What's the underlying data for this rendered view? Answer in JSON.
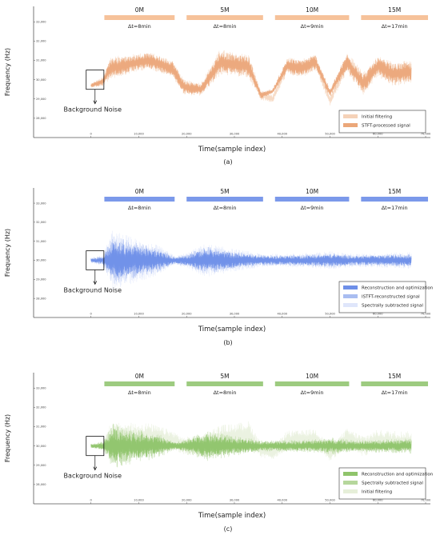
{
  "chart_data": [
    {
      "type": "line",
      "panel_label": "(a)",
      "xlabel": "Time(sample index)",
      "ylabel": "Frequency  (Hz)",
      "xlim": [
        -12000,
        71000
      ],
      "ylim": [
        27000,
        33800
      ],
      "xticks": [
        0,
        10000,
        20000,
        30000,
        40000,
        50000,
        60000,
        70000
      ],
      "xtick_labels": [
        "0",
        "10,000",
        "20,000",
        "30,000",
        "40,000",
        "50,000",
        "60,000",
        "70,000"
      ],
      "yticks": [
        28000,
        29000,
        30000,
        31000,
        32000,
        33000
      ],
      "ytick_labels": [
        "28,000",
        "29,000",
        "30,000",
        "31,000",
        "32,000",
        "33,000"
      ],
      "annotation": "Background Noise",
      "segments": [
        {
          "label": "0M",
          "dt": "Δt=8min",
          "x0": 2800,
          "x1": 17500
        },
        {
          "label": "5M",
          "dt": "Δt=8min",
          "x0": 20000,
          "x1": 36000
        },
        {
          "label": "10M",
          "dt": "Δt=9min",
          "x0": 38500,
          "x1": 54000
        },
        {
          "label": "15M",
          "dt": "Δt=17min",
          "x0": 56500,
          "x1": 70500
        }
      ],
      "legend": [
        "Initial filtering",
        "STFT-processed signal"
      ],
      "series": [
        {
          "name": "Initial filtering",
          "color": "#f5d2b8",
          "x": [
            0,
            2500,
            4000,
            8000,
            12000,
            17000,
            19500,
            23000,
            27000,
            30000,
            33000,
            35500,
            38000,
            41000,
            44000,
            47000,
            50000,
            53500,
            57000,
            60000,
            63000,
            67000
          ],
          "y": [
            29700,
            29900,
            30600,
            30800,
            31000,
            30600,
            29600,
            29500,
            30900,
            30800,
            30700,
            29200,
            29000,
            30700,
            30600,
            30900,
            28900,
            30900,
            29800,
            30700,
            30300,
            30400
          ],
          "amp": [
            120,
            250,
            600,
            500,
            450,
            450,
            400,
            350,
            700,
            600,
            650,
            250,
            200,
            450,
            500,
            450,
            250,
            550,
            600,
            550,
            650,
            600
          ]
        },
        {
          "name": "STFT-processed signal",
          "color": "#eba77a",
          "x": [
            0,
            2500,
            4000,
            8000,
            12000,
            17000,
            19500,
            23000,
            27000,
            30000,
            33000,
            35500,
            38000,
            41000,
            44000,
            47000,
            50000,
            53500,
            57000,
            60000,
            63000,
            67000
          ],
          "y": [
            29700,
            29900,
            30600,
            30800,
            31000,
            30600,
            29600,
            29500,
            30900,
            30800,
            30700,
            29200,
            29400,
            30700,
            30600,
            30900,
            29300,
            30900,
            29800,
            30700,
            30300,
            30400
          ],
          "amp": [
            100,
            200,
            500,
            420,
            380,
            380,
            320,
            280,
            550,
            480,
            520,
            180,
            120,
            380,
            420,
            380,
            200,
            450,
            480,
            450,
            520,
            480
          ]
        }
      ]
    },
    {
      "type": "line",
      "panel_label": "(b)",
      "xlabel": "Time(sample index)",
      "ylabel": "Frequency  (Hz)",
      "xlim": [
        -12000,
        71000
      ],
      "ylim": [
        27000,
        33800
      ],
      "xticks": [
        0,
        10000,
        20000,
        30000,
        40000,
        50000,
        60000,
        70000
      ],
      "xtick_labels": [
        "0",
        "10,000",
        "20,000",
        "30,000",
        "40,000",
        "50,000",
        "60,000",
        "70,000"
      ],
      "yticks": [
        28000,
        29000,
        30000,
        31000,
        32000,
        33000
      ],
      "ytick_labels": [
        "28,000",
        "29,000",
        "30,000",
        "31,000",
        "32,000",
        "33,000"
      ],
      "annotation": "Background Noise",
      "segments": [
        {
          "label": "0M",
          "dt": "Δt=8min",
          "x0": 2800,
          "x1": 17500
        },
        {
          "label": "5M",
          "dt": "Δt=8min",
          "x0": 20000,
          "x1": 36000
        },
        {
          "label": "10M",
          "dt": "Δt=9min",
          "x0": 38500,
          "x1": 54000
        },
        {
          "label": "15M",
          "dt": "Δt=17min",
          "x0": 56500,
          "x1": 70500
        }
      ],
      "legend": [
        "Reconstruction and optimization",
        "ISTFT-reconstructed signal",
        "Spectrally subtracted signal"
      ],
      "series": [
        {
          "name": "Spectrally subtracted signal",
          "color": "#dfe6fb",
          "x": [
            0,
            2500,
            4500,
            9000,
            14000,
            17500,
            20000,
            24000,
            30000,
            36000,
            40000,
            46000,
            50000,
            55000,
            61000,
            67000
          ],
          "y": [
            30000,
            30000,
            30000,
            30000,
            30000,
            30000,
            30000,
            30000,
            30000,
            30000,
            30000,
            30000,
            30000,
            30000,
            30000,
            30000
          ],
          "amp": [
            150,
            300,
            1600,
            1200,
            800,
            250,
            400,
            900,
            600,
            350,
            350,
            400,
            500,
            350,
            400,
            450
          ]
        },
        {
          "name": "ISTFT-reconstructed signal",
          "color": "#a9bdf1",
          "x": [
            0,
            2500,
            4500,
            9000,
            14000,
            17500,
            20000,
            24000,
            30000,
            36000,
            40000,
            46000,
            50000,
            55000,
            61000,
            67000
          ],
          "y": [
            30000,
            30000,
            30000,
            30000,
            30000,
            30000,
            30000,
            30000,
            30000,
            30000,
            30000,
            30000,
            30000,
            30000,
            30000,
            30000
          ],
          "amp": [
            120,
            250,
            1300,
            950,
            650,
            200,
            320,
            750,
            480,
            280,
            280,
            320,
            400,
            280,
            320,
            360
          ]
        },
        {
          "name": "Reconstruction and optimization",
          "color": "#6e8fe8",
          "x": [
            0,
            2500,
            4500,
            9000,
            14000,
            17500,
            20000,
            24000,
            30000,
            36000,
            40000,
            46000,
            50000,
            55000,
            61000,
            67000
          ],
          "y": [
            30000,
            30000,
            30000,
            30000,
            30000,
            30000,
            30000,
            30000,
            30000,
            30000,
            30000,
            30000,
            30000,
            30000,
            30000,
            30000
          ],
          "amp": [
            90,
            180,
            1000,
            750,
            500,
            150,
            250,
            600,
            380,
            220,
            220,
            250,
            320,
            220,
            250,
            280
          ]
        }
      ]
    },
    {
      "type": "line",
      "panel_label": "(c)",
      "xlabel": "Time(sample index)",
      "ylabel": "Frequency  (Hz)",
      "xlim": [
        -12000,
        71000
      ],
      "ylim": [
        27000,
        33800
      ],
      "xticks": [
        0,
        10000,
        20000,
        30000,
        40000,
        50000,
        60000,
        70000
      ],
      "xtick_labels": [
        "0",
        "10,000",
        "20,000",
        "30,000",
        "40,000",
        "50,000",
        "60,000",
        "70,000"
      ],
      "yticks": [
        28000,
        29000,
        30000,
        31000,
        32000,
        33000
      ],
      "ytick_labels": [
        "28,000",
        "29,000",
        "30,000",
        "31,000",
        "32,000",
        "33,000"
      ],
      "annotation": "Background Noise",
      "segments": [
        {
          "label": "0M",
          "dt": "Δt=8min",
          "x0": 2800,
          "x1": 17500
        },
        {
          "label": "5M",
          "dt": "Δt=8min",
          "x0": 20000,
          "x1": 36000
        },
        {
          "label": "10M",
          "dt": "Δt=9min",
          "x0": 38500,
          "x1": 54000
        },
        {
          "label": "15M",
          "dt": "Δt=17min",
          "x0": 56500,
          "x1": 70500
        }
      ],
      "legend": [
        "Reconstruction and optimization",
        "Spectrally subtracted signal",
        "Initial filtering"
      ],
      "series": [
        {
          "name": "Initial filtering",
          "color": "#e6efd9",
          "x": [
            0,
            2500,
            4000,
            8000,
            12000,
            17000,
            19500,
            23000,
            27000,
            30000,
            33000,
            35500,
            38000,
            41000,
            44000,
            47000,
            50000,
            53500,
            57000,
            60000,
            63000,
            67000
          ],
          "y": [
            30000,
            30000,
            30200,
            30400,
            30500,
            30300,
            30000,
            30000,
            30400,
            30500,
            30600,
            29800,
            29600,
            30300,
            30300,
            30400,
            29600,
            30400,
            30000,
            30300,
            30200,
            30200
          ],
          "amp": [
            120,
            250,
            1000,
            800,
            700,
            500,
            450,
            600,
            700,
            650,
            700,
            400,
            350,
            500,
            500,
            500,
            400,
            500,
            550,
            550,
            600,
            550
          ]
        },
        {
          "name": "Spectrally subtracted signal",
          "color": "#b6d79c",
          "x": [
            0,
            2500,
            4500,
            9000,
            14000,
            17500,
            20000,
            24000,
            30000,
            36000,
            40000,
            46000,
            50000,
            55000,
            61000,
            67000
          ],
          "y": [
            30000,
            30000,
            30000,
            30000,
            30000,
            30000,
            30000,
            30000,
            30000,
            30000,
            30000,
            30000,
            30000,
            30000,
            30000,
            30000
          ],
          "amp": [
            110,
            230,
            1200,
            900,
            650,
            220,
            350,
            800,
            520,
            300,
            300,
            350,
            450,
            300,
            350,
            400
          ]
        },
        {
          "name": "Reconstruction and optimization",
          "color": "#8fc46b",
          "x": [
            0,
            2500,
            4500,
            9000,
            14000,
            17500,
            20000,
            24000,
            30000,
            36000,
            40000,
            46000,
            50000,
            55000,
            61000,
            67000
          ],
          "y": [
            30000,
            30000,
            30000,
            30000,
            30000,
            30000,
            30000,
            30000,
            30000,
            30000,
            30000,
            30000,
            30000,
            30000,
            30000,
            30000
          ],
          "amp": [
            80,
            170,
            900,
            700,
            480,
            160,
            260,
            620,
            400,
            230,
            230,
            260,
            330,
            230,
            260,
            290
          ]
        }
      ]
    }
  ]
}
